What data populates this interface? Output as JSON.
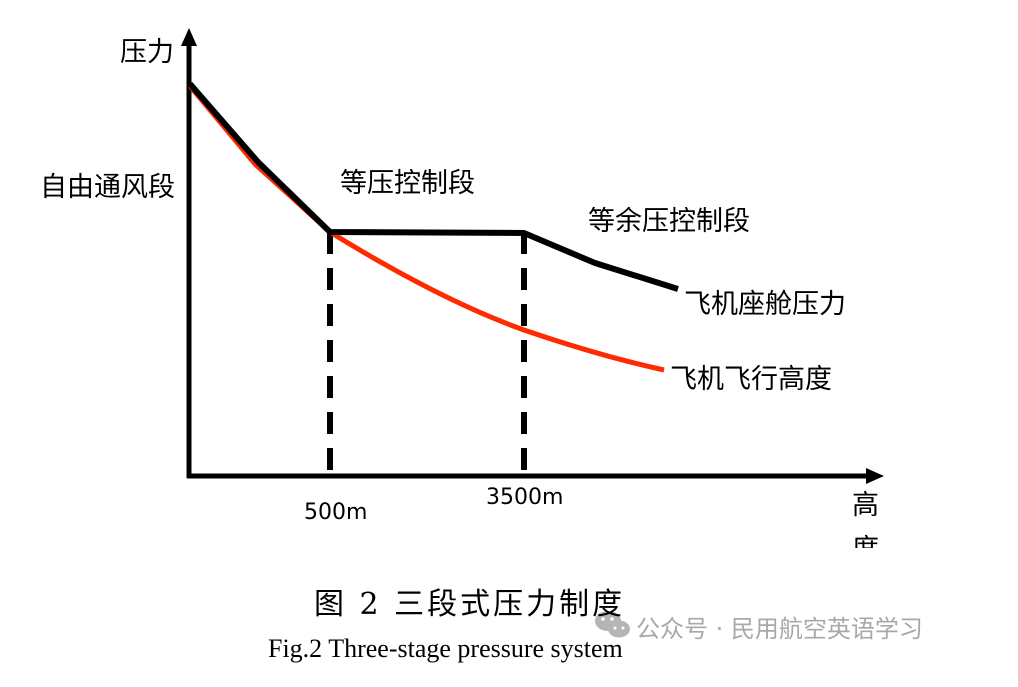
{
  "chart_data": {
    "type": "line",
    "ylabel": "压力",
    "xlabel": "高度",
    "x_ticks": [
      "500m",
      "3500m"
    ],
    "segments": [
      "自由通风段",
      "等压控制段",
      "等余压控制段"
    ],
    "series": [
      {
        "name": "飞机座舱压力",
        "color": "#000000"
      },
      {
        "name": "飞机飞行高度",
        "color": "#ff2a00"
      }
    ],
    "grid": false
  },
  "caption": {
    "cn": "图 2  三段式压力制度",
    "en": "Fig.2 Three-stage pressure system"
  },
  "watermark": "公众号 · 民用航空英语学习"
}
